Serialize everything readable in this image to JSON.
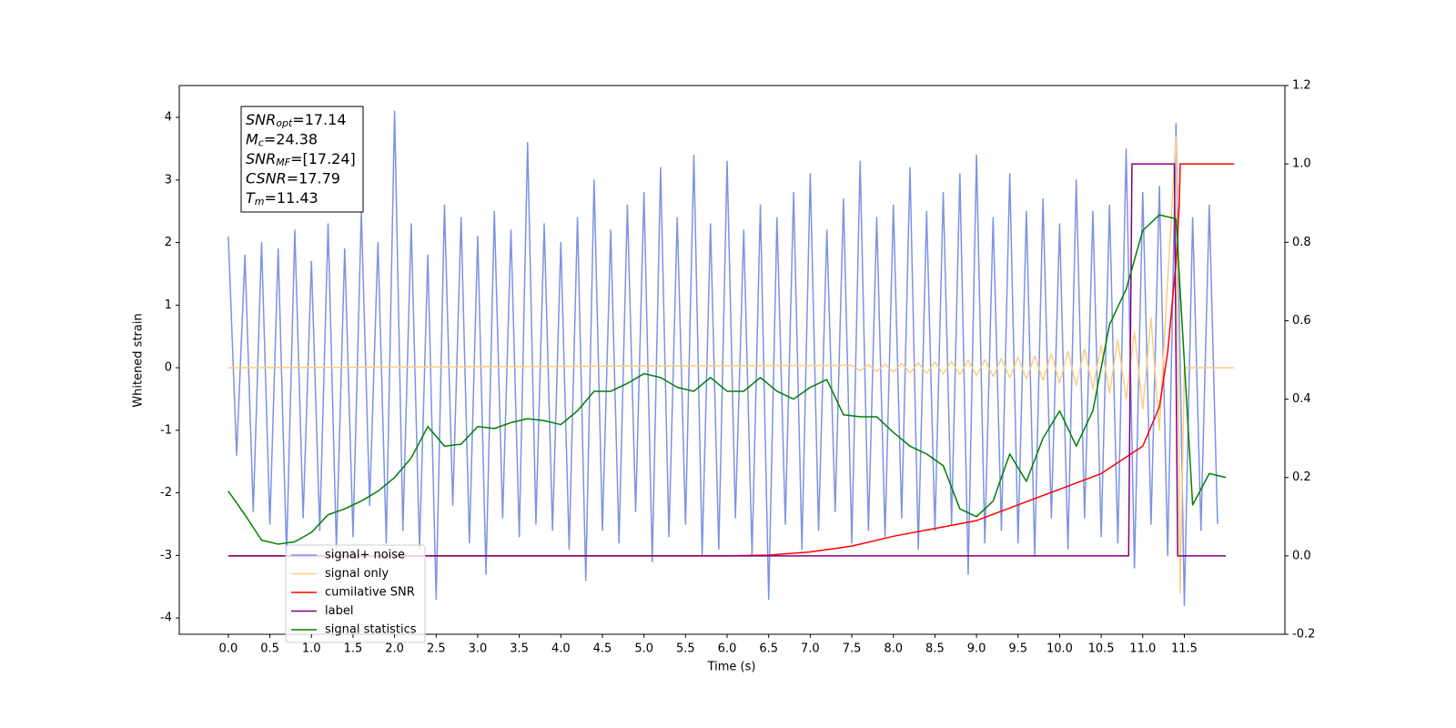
{
  "chart_data": {
    "type": "line",
    "xlabel": "Time (s)",
    "ylabel": "Whitened strain",
    "xlim": [
      -0.59,
      12.71
    ],
    "ylim": [
      -4.26,
      4.51
    ],
    "y2lim": [
      -0.2,
      1.2
    ],
    "xticks": [
      {
        "value": 0,
        "label": "0.0"
      },
      0.5,
      {
        "value": 1,
        "label": "1.0"
      },
      1.5,
      {
        "value": 2,
        "label": "2.0"
      },
      2.5,
      {
        "value": 3,
        "label": "3.0"
      },
      3.5,
      {
        "value": 4,
        "label": "4.0"
      },
      4.5,
      {
        "value": 5,
        "label": "5.0"
      },
      5.5,
      {
        "value": 6,
        "label": "6.0"
      },
      6.5,
      {
        "value": 7,
        "label": "7.0"
      },
      7.5,
      {
        "value": 8,
        "label": "8.0"
      },
      8.5,
      {
        "value": 9,
        "label": "9.0"
      },
      9.5,
      {
        "value": 10,
        "label": "10.0"
      },
      10.5,
      {
        "value": 11,
        "label": "11.0"
      },
      11.5
    ],
    "yticks": [
      -4,
      -3,
      -2,
      -1,
      0,
      1,
      2,
      3,
      4
    ],
    "y2ticks": [
      -0.2,
      {
        "value": 0,
        "label": "0.0"
      },
      0.2,
      0.4,
      0.6,
      0.8,
      {
        "value": 1,
        "label": "1.0"
      },
      1.2
    ],
    "legend": "lower left",
    "annotation": {
      "lines": [
        {
          "symbol": "SNR",
          "subscript": "opt",
          "text": "=17.14"
        },
        {
          "symbol": "M",
          "subscript": "c",
          "text": "=24.38"
        },
        {
          "symbol": "SNR",
          "subscript": "MF",
          "text": "=[17.24]"
        },
        {
          "symbol": "CSNR",
          "text": "=17.79"
        },
        {
          "symbol": "T",
          "subscript": "m",
          "text": "=11.43"
        }
      ]
    },
    "series": [
      {
        "name": "signal+ noise",
        "color": "#7b93e6",
        "x": [
          0,
          0.1,
          0.2,
          0.3,
          0.4,
          0.5,
          0.6,
          0.7,
          0.8,
          0.9,
          1,
          1.1,
          1.2,
          1.3,
          1.4,
          1.5,
          1.6,
          1.7,
          1.8,
          1.9,
          2,
          2.1,
          2.2,
          2.3,
          2.4,
          2.5,
          2.6,
          2.7,
          2.8,
          2.9,
          3,
          3.1,
          3.2,
          3.3,
          3.4,
          3.5,
          3.6,
          3.7,
          3.8,
          3.9,
          4,
          4.1,
          4.2,
          4.3,
          4.4,
          4.5,
          4.6,
          4.7,
          4.8,
          4.9,
          5,
          5.1,
          5.2,
          5.3,
          5.4,
          5.5,
          5.6,
          5.7,
          5.8,
          5.9,
          6,
          6.1,
          6.2,
          6.3,
          6.4,
          6.5,
          6.6,
          6.7,
          6.8,
          6.9,
          7,
          7.1,
          7.2,
          7.3,
          7.4,
          7.5,
          7.6,
          7.7,
          7.8,
          7.9,
          8,
          8.1,
          8.2,
          8.3,
          8.4,
          8.5,
          8.6,
          8.7,
          8.8,
          8.9,
          9,
          9.1,
          9.2,
          9.3,
          9.4,
          9.5,
          9.6,
          9.7,
          9.8,
          9.9,
          10,
          10.1,
          10.2,
          10.3,
          10.4,
          10.5,
          10.6,
          10.7,
          10.8,
          10.9,
          11,
          11.1,
          11.2,
          11.3,
          11.4,
          11.5,
          11.6,
          11.7,
          11.8,
          11.9
        ],
        "values": [
          2.1,
          -1.4,
          1.8,
          -2.3,
          2.0,
          -2.5,
          1.9,
          -3.0,
          2.2,
          -2.4,
          1.7,
          -2.6,
          2.3,
          -2.9,
          1.9,
          -2.7,
          2.5,
          -2.2,
          2.0,
          -2.8,
          4.1,
          -2.6,
          2.3,
          -2.9,
          1.8,
          -3.7,
          2.6,
          -2.2,
          2.4,
          -2.8,
          2.1,
          -3.3,
          2.5,
          -2.4,
          2.2,
          -2.7,
          3.6,
          -2.5,
          2.3,
          -2.6,
          2.0,
          -2.9,
          2.4,
          -3.4,
          3.0,
          -2.6,
          2.2,
          -2.8,
          2.6,
          -2.3,
          2.8,
          -3.1,
          3.2,
          -2.7,
          2.4,
          -2.5,
          3.4,
          -3.0,
          2.3,
          -2.9,
          3.3,
          -2.4,
          2.2,
          -3.0,
          2.6,
          -3.7,
          2.4,
          -2.5,
          2.8,
          -2.9,
          3.1,
          -2.6,
          2.2,
          -2.3,
          2.7,
          -2.8,
          3.3,
          -2.6,
          2.4,
          -2.7,
          2.6,
          -2.4,
          3.2,
          -2.9,
          2.5,
          -2.6,
          2.8,
          -2.5,
          3.1,
          -3.3,
          3.4,
          -2.8,
          2.4,
          -2.6,
          3.1,
          -2.8,
          2.5,
          -3.0,
          2.7,
          -2.4,
          2.3,
          -2.9,
          3.0,
          -2.4,
          2.5,
          -2.7,
          2.6,
          -2.8,
          3.5,
          -3.2,
          2.8,
          -2.5,
          2.9,
          -3.0,
          3.9,
          -3.8,
          2.4,
          -2.6,
          2.6,
          -2.5
        ]
      },
      {
        "name": "signal only",
        "color": "#ffcc80",
        "x": [
          0,
          7.5,
          7.6,
          7.7,
          7.8,
          7.9,
          8,
          8.1,
          8.2,
          8.3,
          8.4,
          8.5,
          8.6,
          8.7,
          8.8,
          8.9,
          9,
          9.1,
          9.2,
          9.3,
          9.4,
          9.5,
          9.6,
          9.7,
          9.8,
          9.9,
          10,
          10.1,
          10.2,
          10.3,
          10.4,
          10.5,
          10.6,
          10.7,
          10.8,
          10.9,
          11,
          11.1,
          11.2,
          11.3,
          11.4,
          11.45,
          11.5,
          12.1
        ],
        "values": [
          0,
          0.04,
          -0.05,
          0.05,
          -0.06,
          0.06,
          -0.07,
          0.07,
          -0.08,
          0.08,
          -0.09,
          0.09,
          -0.1,
          0.1,
          -0.11,
          0.12,
          -0.13,
          0.13,
          -0.14,
          0.15,
          -0.16,
          0.17,
          -0.18,
          0.19,
          -0.2,
          0.22,
          -0.24,
          0.26,
          -0.28,
          0.3,
          -0.33,
          0.36,
          -0.4,
          0.45,
          -0.5,
          0.57,
          -0.66,
          0.8,
          -1.0,
          1.4,
          3.7,
          -3.6,
          0,
          0
        ]
      },
      {
        "name": "cumilative SNR",
        "color": "#ff0000",
        "axis": "y2",
        "x": [
          0,
          6,
          6.5,
          7,
          7.5,
          8,
          8.5,
          9,
          9.5,
          10,
          10.5,
          11,
          11.2,
          11.3,
          11.4,
          11.44,
          11.45,
          12.1
        ],
        "values": [
          0,
          0,
          0.002,
          0.01,
          0.025,
          0.05,
          0.07,
          0.09,
          0.13,
          0.17,
          0.21,
          0.28,
          0.38,
          0.52,
          0.75,
          0.9,
          1.0,
          1.0
        ]
      },
      {
        "name": "label",
        "color": "#800080",
        "axis": "y2",
        "x": [
          0,
          10.83,
          10.87,
          11.38,
          11.42,
          12.0
        ],
        "values": [
          0,
          0,
          1,
          1,
          0,
          0
        ]
      },
      {
        "name": "signal statistics",
        "color": "#008000",
        "axis": "y2",
        "x": [
          0,
          0.2,
          0.4,
          0.6,
          0.8,
          1,
          1.2,
          1.4,
          1.6,
          1.8,
          2,
          2.2,
          2.4,
          2.6,
          2.8,
          3,
          3.2,
          3.4,
          3.6,
          3.8,
          4,
          4.2,
          4.4,
          4.6,
          4.8,
          5,
          5.2,
          5.4,
          5.6,
          5.8,
          6,
          6.2,
          6.4,
          6.6,
          6.8,
          7,
          7.2,
          7.4,
          7.6,
          7.8,
          8,
          8.2,
          8.4,
          8.6,
          8.8,
          9,
          9.2,
          9.4,
          9.6,
          9.8,
          10,
          10.2,
          10.4,
          10.6,
          10.8,
          11,
          11.2,
          11.4,
          11.6,
          11.8,
          12
        ],
        "values": [
          0.165,
          0.105,
          0.04,
          0.03,
          0.036,
          0.06,
          0.105,
          0.12,
          0.14,
          0.165,
          0.2,
          0.25,
          0.33,
          0.28,
          0.285,
          0.33,
          0.325,
          0.34,
          0.35,
          0.345,
          0.335,
          0.37,
          0.42,
          0.42,
          0.44,
          0.465,
          0.455,
          0.43,
          0.42,
          0.455,
          0.42,
          0.42,
          0.455,
          0.42,
          0.4,
          0.43,
          0.45,
          0.36,
          0.355,
          0.355,
          0.315,
          0.28,
          0.26,
          0.23,
          0.12,
          0.1,
          0.14,
          0.26,
          0.19,
          0.3,
          0.37,
          0.28,
          0.37,
          0.59,
          0.68,
          0.83,
          0.87,
          0.86,
          0.13,
          0.21,
          0.2
        ]
      }
    ]
  }
}
